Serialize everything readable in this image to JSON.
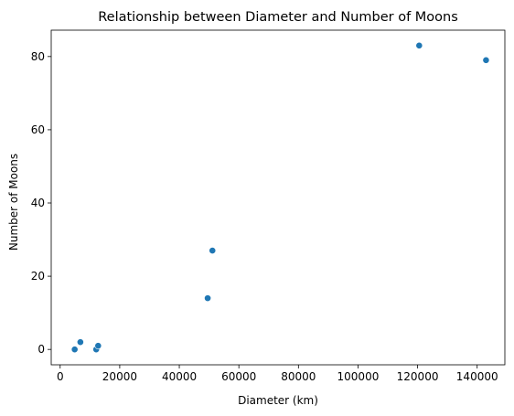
{
  "chart_data": {
    "type": "scatter",
    "title": "Relationship between Diameter and Number of Moons",
    "xlabel": "Diameter (km)",
    "ylabel": "Number of Moons",
    "xlim": [
      -3000,
      149300
    ],
    "ylim": [
      -4.2,
      87.2
    ],
    "xticks": [
      0,
      20000,
      40000,
      60000,
      80000,
      100000,
      120000,
      140000
    ],
    "xtick_labels": [
      "0",
      "20000",
      "40000",
      "60000",
      "80000",
      "100000",
      "120000",
      "140000"
    ],
    "yticks": [
      0,
      20,
      40,
      60,
      80
    ],
    "ytick_labels": [
      "0",
      "20",
      "40",
      "60",
      "80"
    ],
    "grid": false,
    "marker_color": "#1f77b4",
    "points": [
      {
        "x": 4879,
        "y": 0
      },
      {
        "x": 12104,
        "y": 0
      },
      {
        "x": 12756,
        "y": 1
      },
      {
        "x": 6792,
        "y": 2
      },
      {
        "x": 142984,
        "y": 79
      },
      {
        "x": 120536,
        "y": 83
      },
      {
        "x": 51118,
        "y": 27
      },
      {
        "x": 49528,
        "y": 14
      }
    ]
  }
}
